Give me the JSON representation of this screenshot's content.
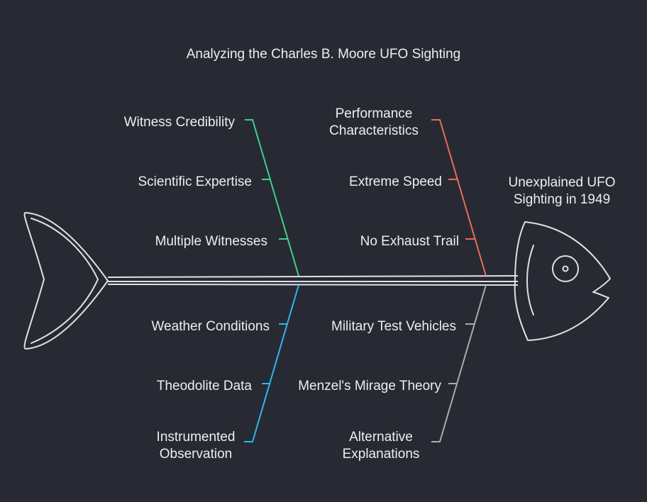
{
  "title": "Analyzing the Charles B. Moore UFO Sighting",
  "head_label": "Unexplained UFO Sighting in 1949",
  "colors": {
    "background": "#272a33",
    "outline": "#dfe1e6",
    "credibility": "#3fd08a",
    "performance": "#ee6a5c",
    "observation": "#2eb6f0",
    "explanations": "#a9abb1"
  },
  "categories": {
    "credibility": {
      "causes": [
        "Witness Credibility",
        "Scientific Expertise",
        "Multiple Witnesses"
      ]
    },
    "performance": {
      "causes": [
        "Performance Characteristics",
        "Extreme Speed",
        "No Exhaust Trail"
      ]
    },
    "observation": {
      "causes": [
        "Weather Conditions",
        "Theodolite Data",
        "Instrumented Observation"
      ]
    },
    "explanations": {
      "causes": [
        "Military Test Vehicles",
        "Menzel's Mirage Theory",
        "Alternative Explanations"
      ]
    }
  }
}
